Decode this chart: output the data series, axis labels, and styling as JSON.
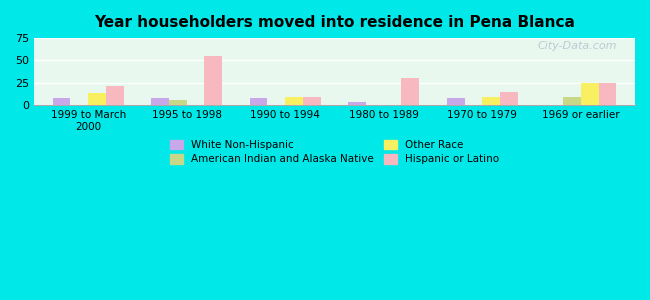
{
  "title": "Year householders moved into residence in Pena Blanca",
  "categories": [
    "1999 to March\n2000",
    "1995 to 1998",
    "1990 to 1994",
    "1980 to 1989",
    "1970 to 1979",
    "1969 or earlier"
  ],
  "series": {
    "White Non-Hispanic": [
      8,
      8,
      8,
      3,
      8,
      0
    ],
    "American Indian and Alaska Native": [
      0,
      6,
      0,
      0,
      0,
      9
    ],
    "Other Race": [
      13,
      0,
      9,
      0,
      9,
      25
    ],
    "Hispanic or Latino": [
      21,
      55,
      9,
      30,
      15,
      25
    ]
  },
  "colors": {
    "White Non-Hispanic": "#c8a8e8",
    "American Indian and Alaska Native": "#c8d888",
    "Other Race": "#f8f060",
    "Hispanic or Latino": "#f8b8c0"
  },
  "ylim": [
    0,
    75
  ],
  "yticks": [
    0,
    25,
    50,
    75
  ],
  "background_outer": "#00e8e8",
  "background_plot": [
    "#e8f8e8",
    "#ffffff"
  ],
  "watermark": "City-Data.com",
  "legend_entries": [
    "White Non-Hispanic",
    "American Indian and Alaska Native",
    "Other Race",
    "Hispanic or Latino"
  ]
}
